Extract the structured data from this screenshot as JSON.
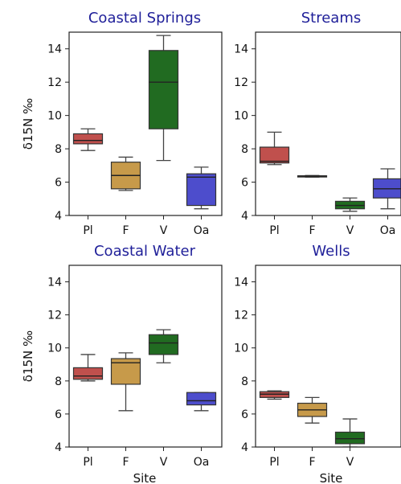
{
  "chart_data": [
    {
      "type": "box",
      "title": "Coastal Springs",
      "ylabel": "δ15N ‰",
      "xlabel": "",
      "ylim": [
        4,
        15
      ],
      "yticks": [
        4,
        6,
        8,
        10,
        12,
        14
      ],
      "categories": [
        "Pl",
        "F",
        "V",
        "Oa"
      ],
      "colors": [
        "#c0504d",
        "#c79a4a",
        "#216b21",
        "#4d4dcc"
      ],
      "boxes": [
        {
          "min": 7.9,
          "q1": 8.3,
          "median": 8.5,
          "q3": 8.9,
          "max": 9.2
        },
        {
          "min": 5.5,
          "q1": 5.6,
          "median": 6.4,
          "q3": 7.2,
          "max": 7.5
        },
        {
          "min": 7.3,
          "q1": 9.2,
          "median": 12.0,
          "q3": 13.9,
          "max": 14.8
        },
        {
          "min": 4.4,
          "q1": 4.6,
          "median": 6.3,
          "q3": 6.5,
          "max": 6.9
        }
      ]
    },
    {
      "type": "box",
      "title": "Streams",
      "ylabel": "",
      "xlabel": "",
      "ylim": [
        4,
        15
      ],
      "yticks": [
        4,
        6,
        8,
        10,
        12,
        14
      ],
      "categories": [
        "Pl",
        "F",
        "V",
        "Oa"
      ],
      "colors": [
        "#c0504d",
        "#c79a4a",
        "#216b21",
        "#4d4dcc"
      ],
      "boxes": [
        {
          "min": 7.05,
          "q1": 7.15,
          "median": 7.25,
          "q3": 8.1,
          "max": 9.0
        },
        {
          "min": 6.3,
          "q1": 6.33,
          "median": 6.36,
          "q3": 6.38,
          "max": 6.4
        },
        {
          "min": 4.25,
          "q1": 4.4,
          "median": 4.6,
          "q3": 4.85,
          "max": 5.05
        },
        {
          "min": 4.4,
          "q1": 5.05,
          "median": 5.6,
          "q3": 6.2,
          "max": 6.8
        }
      ]
    },
    {
      "type": "box",
      "title": "Coastal Water",
      "ylabel": "δ15N ‰",
      "xlabel": "Site",
      "ylim": [
        4,
        15
      ],
      "yticks": [
        4,
        6,
        8,
        10,
        12,
        14
      ],
      "categories": [
        "Pl",
        "F",
        "V",
        "Oa"
      ],
      "colors": [
        "#c0504d",
        "#c79a4a",
        "#216b21",
        "#4d4dcc"
      ],
      "boxes": [
        {
          "min": 8.0,
          "q1": 8.1,
          "median": 8.3,
          "q3": 8.8,
          "max": 9.6
        },
        {
          "min": 6.2,
          "q1": 7.8,
          "median": 9.1,
          "q3": 9.35,
          "max": 9.7
        },
        {
          "min": 9.1,
          "q1": 9.6,
          "median": 10.3,
          "q3": 10.8,
          "max": 11.1
        },
        {
          "min": 6.2,
          "q1": 6.55,
          "median": 6.8,
          "q3": 7.3,
          "max": 7.3
        }
      ]
    },
    {
      "type": "box",
      "title": "Wells",
      "ylabel": "",
      "xlabel": "Site",
      "ylim": [
        4,
        15
      ],
      "yticks": [
        4,
        6,
        8,
        10,
        12,
        14
      ],
      "categories": [
        "Pl",
        "F",
        "V"
      ],
      "colors": [
        "#c0504d",
        "#c79a4a",
        "#216b21"
      ],
      "boxes": [
        {
          "min": 6.9,
          "q1": 7.0,
          "median": 7.2,
          "q3": 7.35,
          "max": 7.4
        },
        {
          "min": 5.45,
          "q1": 5.85,
          "median": 6.25,
          "q3": 6.65,
          "max": 7.0
        },
        {
          "min": 4.0,
          "q1": 4.2,
          "median": 4.5,
          "q3": 4.9,
          "max": 5.7
        }
      ]
    }
  ]
}
